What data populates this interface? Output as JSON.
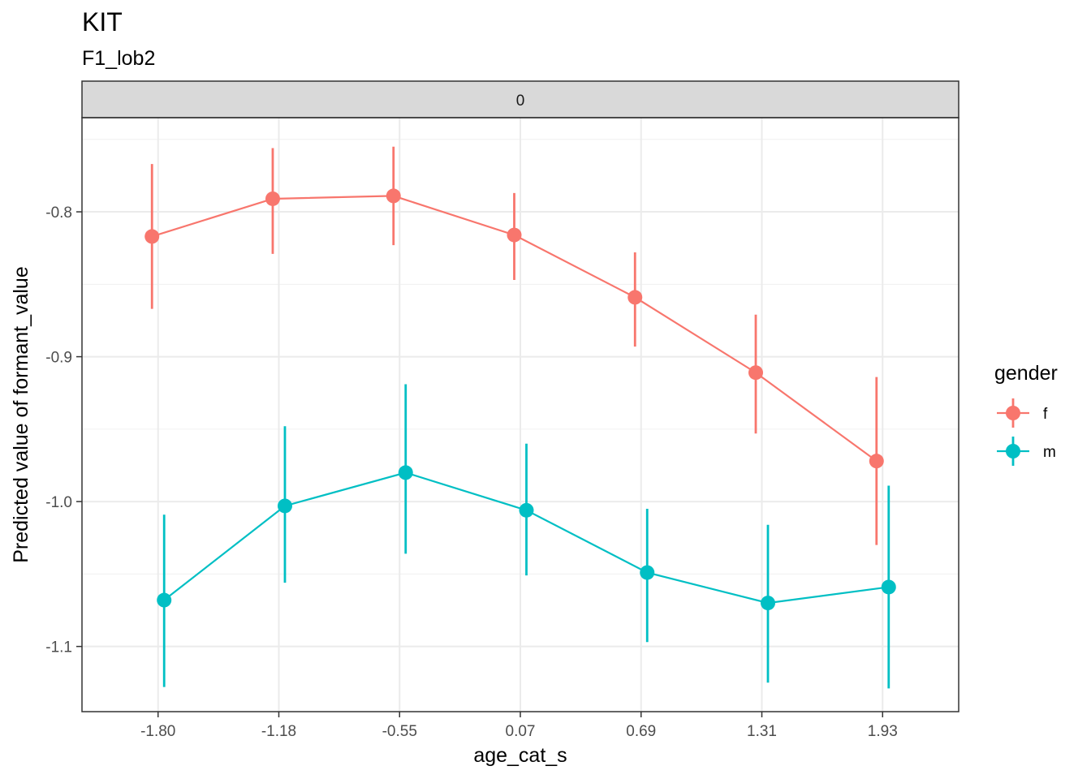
{
  "chart_data": {
    "type": "line",
    "title": "KIT",
    "subtitle": "F1_lob2",
    "facet_label": "0",
    "xlabel": "age_cat_s",
    "ylabel": "Predicted value of formant_value",
    "categories": [
      "-1.80",
      "-1.18",
      "-0.55",
      "0.07",
      "0.69",
      "1.31",
      "1.93"
    ],
    "x_values": [
      -1.8,
      -1.18,
      -0.55,
      0.07,
      0.69,
      1.31,
      1.93
    ],
    "y_ticks": [
      "-0.8",
      "-0.9",
      "-1.0",
      "-1.1"
    ],
    "y_tick_values": [
      -0.8,
      -0.9,
      -1.0,
      -1.1
    ],
    "ylim": [
      -1.145,
      -0.735
    ],
    "grid": true,
    "legend": {
      "title": "gender",
      "position": "right"
    },
    "series": [
      {
        "name": "f",
        "color": "#F8766D",
        "values": [
          -0.817,
          -0.791,
          -0.789,
          -0.816,
          -0.859,
          -0.911,
          -0.972
        ],
        "lower": [
          -0.867,
          -0.829,
          -0.823,
          -0.847,
          -0.893,
          -0.953,
          -1.03
        ],
        "upper": [
          -0.767,
          -0.756,
          -0.755,
          -0.787,
          -0.828,
          -0.871,
          -0.914
        ]
      },
      {
        "name": "m",
        "color": "#00BFC4",
        "values": [
          -1.068,
          -1.003,
          -0.98,
          -1.006,
          -1.049,
          -1.07,
          -1.059
        ],
        "lower": [
          -1.128,
          -1.056,
          -1.036,
          -1.051,
          -1.097,
          -1.125,
          -1.129
        ],
        "upper": [
          -1.009,
          -0.948,
          -0.919,
          -0.96,
          -1.005,
          -1.016,
          -0.989
        ]
      }
    ]
  }
}
